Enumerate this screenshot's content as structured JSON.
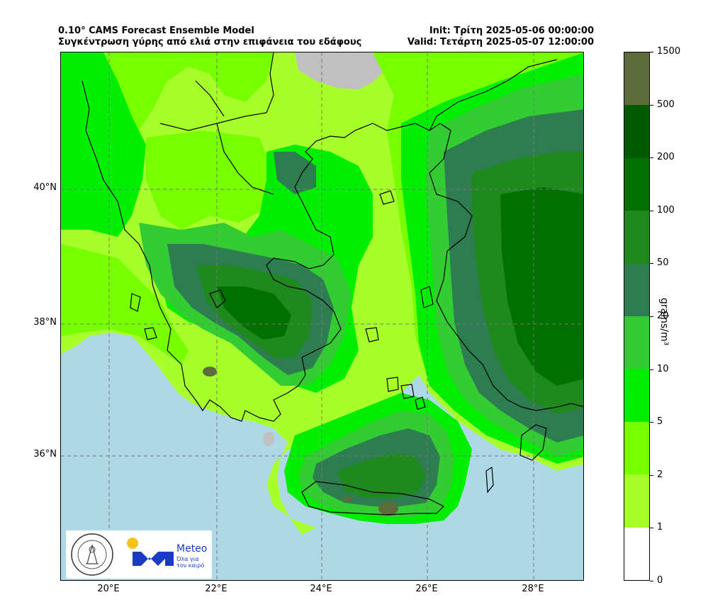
{
  "header": {
    "title_line1": "0.10° CAMS Forecast Ensemble Model",
    "title_line2": "Συγκέντρωση γύρης από ελιά στην επιφάνεια του εδάφους",
    "init": "Init: Τρίτη 2025-05-06 00:00:00",
    "valid": "Valid: Τετάρτη 2025-05-07 12:00:00"
  },
  "axes": {
    "lat_labels": [
      "40°N",
      "38°N",
      "36°N"
    ],
    "lon_labels": [
      "20°E",
      "22°E",
      "24°E",
      "26°E",
      "28°E"
    ],
    "gridlines": true
  },
  "colorbar": {
    "label": "grains/m³",
    "ticks": [
      "1500",
      "500",
      "200",
      "100",
      "50",
      "20",
      "10",
      "5",
      "2",
      "1",
      "0"
    ],
    "colors": [
      "#5e6b3b",
      "#005a00",
      "#007000",
      "#1e8a1e",
      "#2e7d50",
      "#33cc33",
      "#00ee00",
      "#77ff00",
      "#a6ff2a",
      "#ffffff"
    ]
  },
  "map": {
    "sea_color": "#add8e6",
    "nodata_color": "#c0c0c0",
    "levels": {
      "l1": "#a6ff2a",
      "l2": "#77ff00",
      "l5": "#00ee00",
      "l10": "#33cc33",
      "l20": "#2e7d50",
      "l50": "#1e8a1e",
      "l100": "#007000",
      "l1500": "#5e6b3b"
    }
  },
  "logos": {
    "meteo_name": "Meteo",
    "meteo_tagline": "Όλα για τον καιρό",
    "seal_text": "ΕΘΝΙΚΟ ΑΣΤΕΡΟΣΚΟΠΕΙΟ ΑΘΗΝΩΝ · NATIONAL OBSERVATORY OF ATHENS"
  }
}
